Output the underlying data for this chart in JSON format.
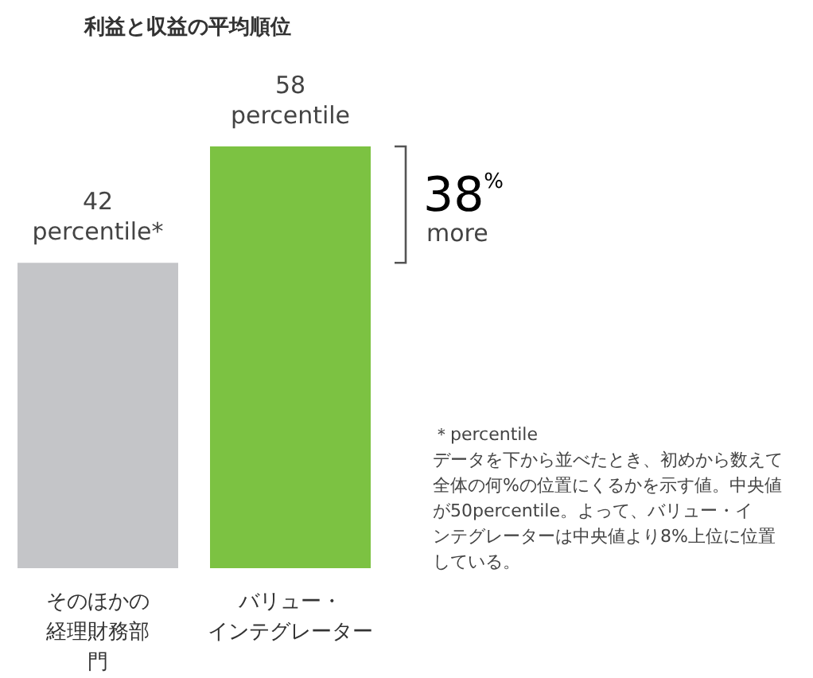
{
  "chart_data": {
    "type": "bar",
    "title": "利益と収益の平均順位",
    "categories": [
      "そのほかの経理財務部門",
      "バリュー・インテグレーター"
    ],
    "values": [
      42,
      58
    ],
    "colors": [
      "#c4c5c8",
      "#7cc242"
    ],
    "value_labels": [
      "42\npercentile*",
      "58\npercentile"
    ],
    "annotations": [
      "38$^{%}$",
      "more",
      "＊percentile\nデータを下から並べたとき、初めから数えて全体の何%の位置にくるかを示す値。中央値が50percentile。よって、バリュー・インテグレーターは中央値より8%上位に位置している。"
    ]
  }
}
